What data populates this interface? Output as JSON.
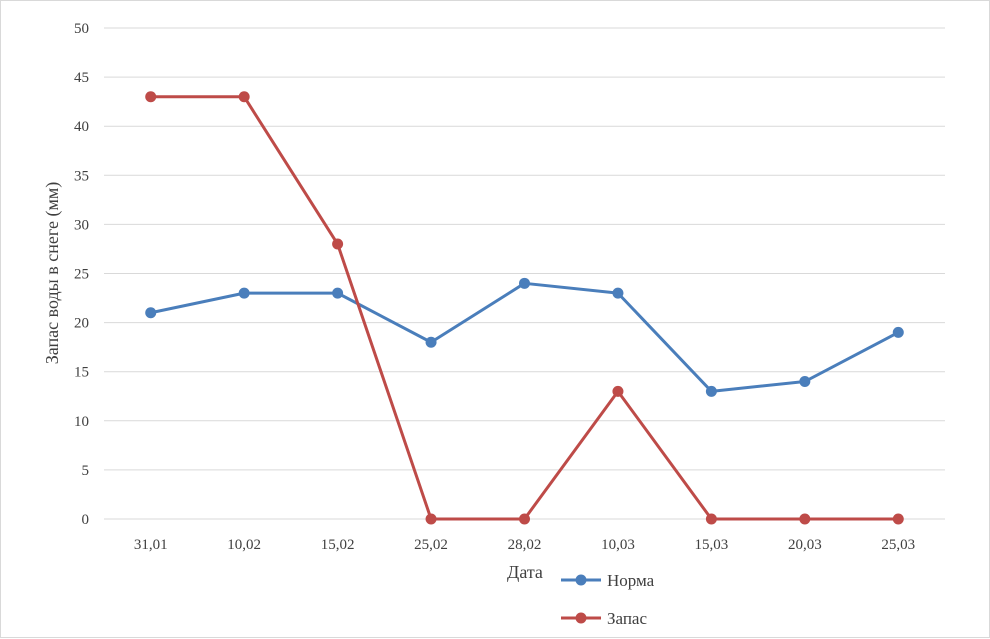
{
  "chart_data": {
    "type": "line",
    "categories": [
      "31,01",
      "10,02",
      "15,02",
      "25,02",
      "28,02",
      "10,03",
      "15,03",
      "20,03",
      "25,03"
    ],
    "series": [
      {
        "name": "Норма",
        "color": "#4a7ebb",
        "values": [
          21,
          23,
          23,
          18,
          24,
          23,
          13,
          14,
          19
        ]
      },
      {
        "name": "Запас",
        "color": "#be4b48",
        "values": [
          43,
          43,
          28,
          0,
          0,
          13,
          0,
          0,
          0
        ]
      }
    ],
    "title": "",
    "xlabel": "Дата",
    "ylabel": "Запас воды в снеге (мм)",
    "ylim": [
      0,
      50
    ],
    "yticks": [
      0,
      5,
      10,
      15,
      20,
      25,
      30,
      35,
      40,
      45,
      50
    ],
    "grid": true,
    "legend_position": "bottom-center"
  }
}
